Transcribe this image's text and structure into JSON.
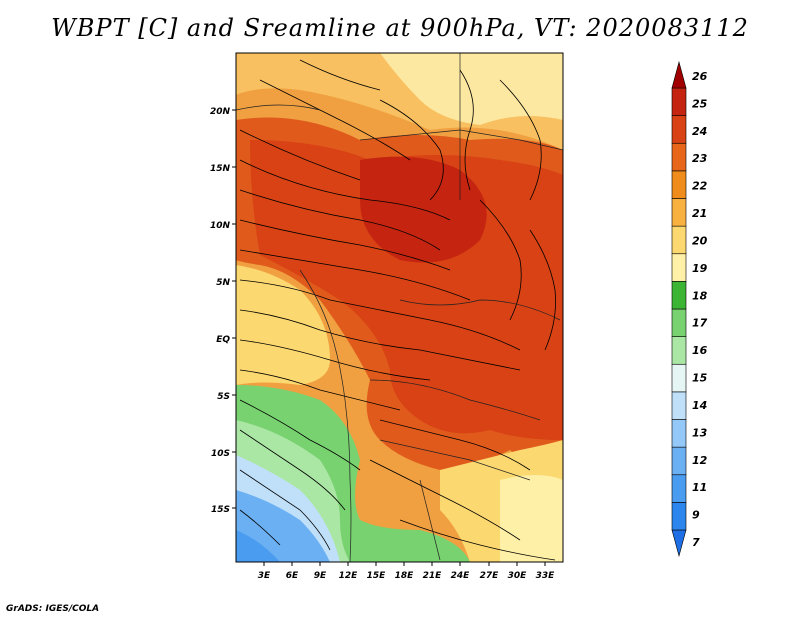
{
  "title": "WBPT [C] and Sreamline at 900hPa, VT: 2020083112",
  "credit": "GrADS: IGES/COLA",
  "map": {
    "lat_labels": [
      "20N",
      "15N",
      "10N",
      "5N",
      "EQ",
      "5S",
      "10S",
      "15S"
    ],
    "lon_labels": [
      "3E",
      "6E",
      "9E",
      "12E",
      "15E",
      "18E",
      "21E",
      "24E",
      "27E",
      "30E",
      "33E"
    ]
  },
  "colorbar": {
    "labels": [
      "7",
      "9",
      "11",
      "12",
      "13",
      "14",
      "15",
      "16",
      "17",
      "18",
      "19",
      "20",
      "21",
      "22",
      "23",
      "24",
      "25",
      "26"
    ],
    "colors": [
      "#1e6ee6",
      "#2c86ee",
      "#4a9cf0",
      "#6cb0f4",
      "#94c8f8",
      "#c0e0fa",
      "#e6f6f4",
      "#aae6a4",
      "#78d270",
      "#3cb434",
      "#fff0a8",
      "#fcd870",
      "#f8b040",
      "#f08c1c",
      "#e8661a",
      "#d84214",
      "#c42410",
      "#a00000"
    ]
  }
}
